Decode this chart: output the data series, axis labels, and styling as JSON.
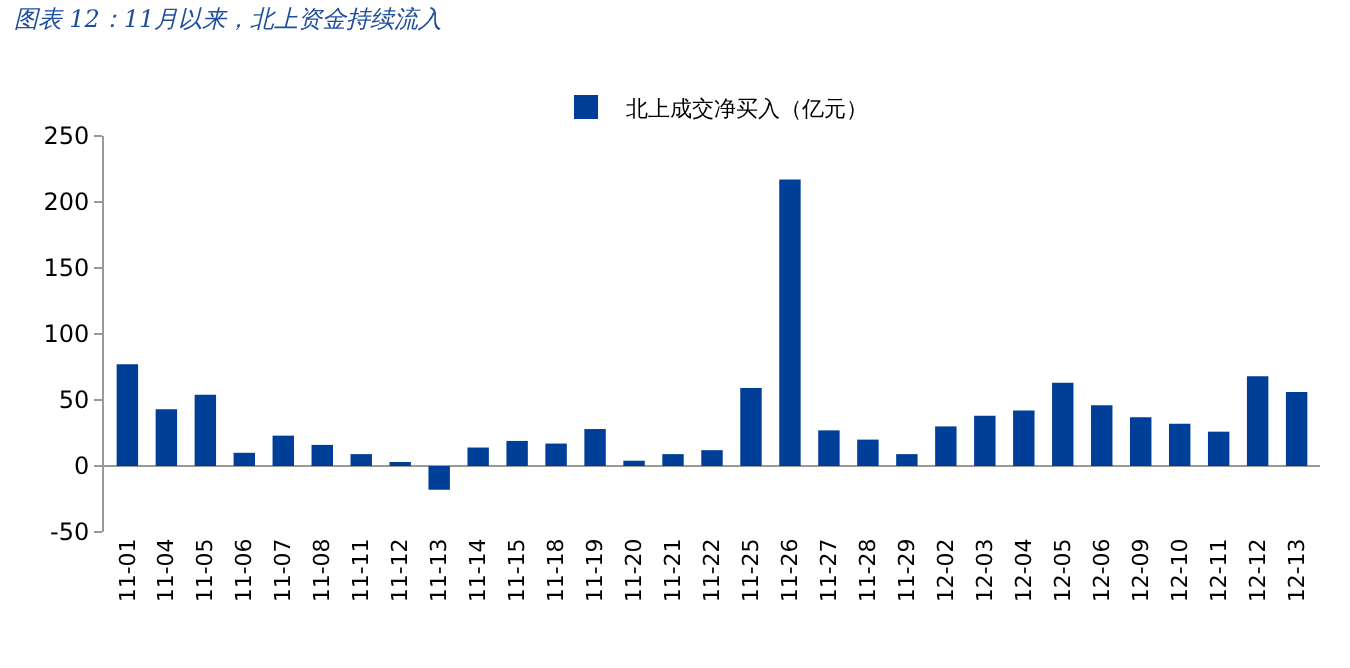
{
  "chart_data": {
    "type": "bar",
    "title": "图表 12：11月以来，北上资金持续流入",
    "categories": [
      "11-01",
      "11-04",
      "11-05",
      "11-06",
      "11-07",
      "11-08",
      "11-11",
      "11-12",
      "11-13",
      "11-14",
      "11-15",
      "11-18",
      "11-19",
      "11-20",
      "11-21",
      "11-22",
      "11-25",
      "11-26",
      "11-27",
      "11-28",
      "11-29",
      "12-02",
      "12-03",
      "12-04",
      "12-05",
      "12-06",
      "12-09",
      "12-10",
      "12-11",
      "12-12",
      "12-13"
    ],
    "series": [
      {
        "name": "北上成交净买入（亿元）",
        "color": "#003f98",
        "values": [
          77,
          43,
          54,
          10,
          23,
          16,
          9,
          2,
          -18,
          14,
          19,
          17,
          28,
          4,
          9,
          12,
          59,
          217,
          27,
          20,
          9,
          30,
          38,
          42,
          63,
          46,
          37,
          32,
          26,
          68,
          56
        ]
      }
    ],
    "ylim": [
      -50,
      250
    ],
    "yticks": [
      -50,
      0,
      50,
      100,
      150,
      200,
      250
    ],
    "legend": "top"
  }
}
